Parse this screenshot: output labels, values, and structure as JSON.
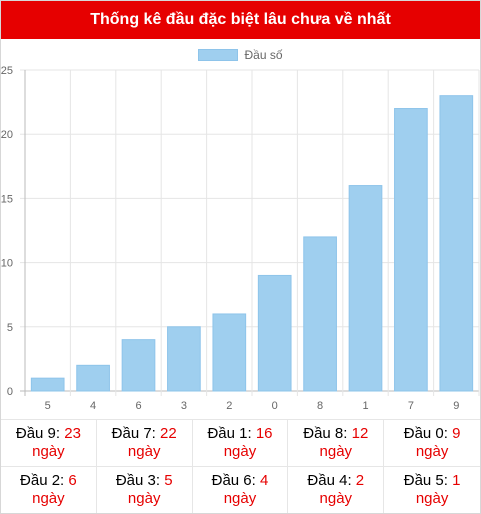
{
  "header": {
    "title": "Thống kê đầu đặc biệt lâu chưa về nhất"
  },
  "chart_data": {
    "type": "bar",
    "categories": [
      "5",
      "4",
      "6",
      "3",
      "2",
      "0",
      "8",
      "1",
      "7",
      "9"
    ],
    "series": [
      {
        "name": "Đầu số",
        "values": [
          1,
          2,
          4,
          5,
          6,
          9,
          12,
          16,
          22,
          23
        ]
      }
    ],
    "ylim": [
      0,
      25
    ],
    "yticks": [
      0,
      5,
      10,
      15,
      20,
      25
    ],
    "grid": true,
    "legend": "top-center",
    "bar_color": "#9fcfef",
    "bar_border_color": "#8ec4ea"
  },
  "stats": {
    "unit": "ngày",
    "items": [
      {
        "label": "Đầu 9:",
        "value": "23"
      },
      {
        "label": "Đầu 7:",
        "value": "22"
      },
      {
        "label": "Đầu 1:",
        "value": "16"
      },
      {
        "label": "Đầu 8:",
        "value": "12"
      },
      {
        "label": "Đầu 0:",
        "value": "9"
      },
      {
        "label": "Đầu 2:",
        "value": "6"
      },
      {
        "label": "Đầu 3:",
        "value": "5"
      },
      {
        "label": "Đầu 6:",
        "value": "4"
      },
      {
        "label": "Đầu 4:",
        "value": "2"
      },
      {
        "label": "Đầu 5:",
        "value": "1"
      }
    ]
  },
  "colors": {
    "header_bg": "#e60000",
    "value_text": "#e60000"
  }
}
